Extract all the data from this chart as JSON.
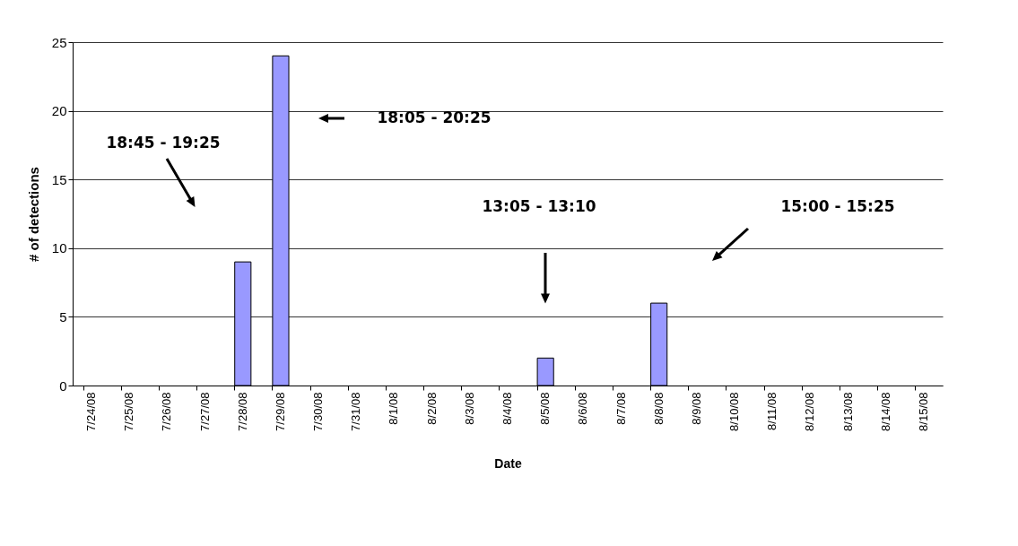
{
  "chart_data": {
    "type": "bar",
    "xlabel": "Date",
    "ylabel": "# of detections",
    "categories": [
      "7/24/08",
      "7/25/08",
      "7/26/08",
      "7/27/08",
      "7/28/08",
      "7/29/08",
      "7/30/08",
      "7/31/08",
      "8/1/08",
      "8/2/08",
      "8/3/08",
      "8/4/08",
      "8/5/08",
      "8/6/08",
      "8/7/08",
      "8/8/08",
      "8/9/08",
      "8/10/08",
      "8/11/08",
      "8/12/08",
      "8/13/08",
      "8/14/08",
      "8/15/08"
    ],
    "values": [
      0,
      0,
      0,
      0,
      9,
      24,
      0,
      0,
      0,
      0,
      0,
      0,
      2,
      0,
      0,
      6,
      0,
      0,
      0,
      0,
      0,
      0,
      0
    ],
    "color": "#9999ff",
    "ylim": [
      0,
      25
    ],
    "yticks": [
      0,
      5,
      10,
      15,
      20,
      25
    ],
    "grid": "y",
    "annotations": [
      "18:45 - 19:25",
      "18:05 - 20:25",
      "13:05 - 13:10",
      "15:00 - 15:25"
    ]
  }
}
